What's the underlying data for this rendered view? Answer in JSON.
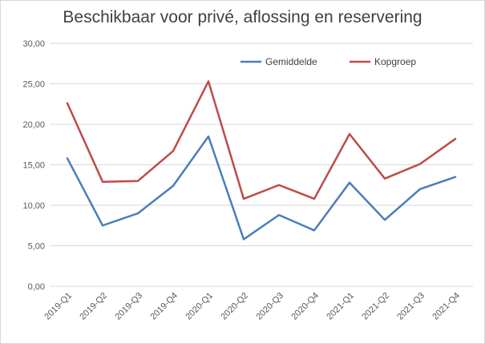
{
  "chart_data": {
    "type": "line",
    "title": "Beschikbaar voor privé, aflossing en reservering",
    "xlabel": "",
    "ylabel": "",
    "categories": [
      "2019-Q1",
      "2019-Q2",
      "2019-Q3",
      "2019-Q4",
      "2020-Q1",
      "2020-Q2",
      "2020-Q3",
      "2020-Q4",
      "2021-Q1",
      "2021-Q2",
      "2021-Q3",
      "2021-Q4"
    ],
    "y_ticks": [
      "0,00",
      "5,00",
      "10,00",
      "15,00",
      "20,00",
      "25,00",
      "30,00"
    ],
    "ylim": [
      0,
      30
    ],
    "grid": true,
    "legend_position": "top-right",
    "series": [
      {
        "name": "Gemiddelde",
        "color": "#4a7ebb",
        "values": [
          15.8,
          7.5,
          9.0,
          12.4,
          18.5,
          5.8,
          8.8,
          6.9,
          12.8,
          8.2,
          12.0,
          13.5
        ]
      },
      {
        "name": "Kopgroep",
        "color": "#be4b48",
        "values": [
          22.6,
          12.9,
          13.0,
          16.7,
          25.3,
          10.8,
          12.5,
          10.8,
          18.8,
          13.3,
          15.1,
          18.2
        ]
      }
    ]
  }
}
